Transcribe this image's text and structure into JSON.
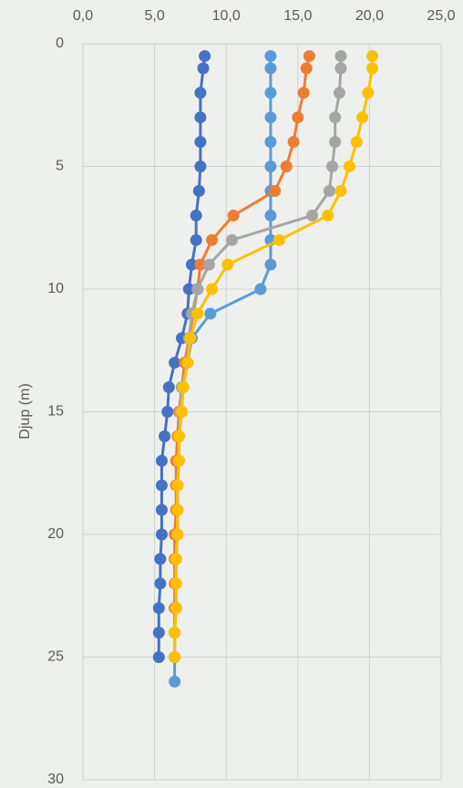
{
  "chart_data": {
    "type": "line",
    "ylabel": "Djup (m)",
    "grid": true,
    "y_inverted": true,
    "x_axis_position": "top",
    "xlim": [
      0,
      25
    ],
    "xticks": [
      {
        "value": 0,
        "label": "0,0"
      },
      {
        "value": 5,
        "label": "5,0"
      },
      {
        "value": 10,
        "label": "10,0"
      },
      {
        "value": 15,
        "label": "15,0"
      },
      {
        "value": 20,
        "label": "20,0"
      },
      {
        "value": 25,
        "label": "25,0"
      }
    ],
    "ylim": [
      0,
      30
    ],
    "yticks": [
      0,
      5,
      10,
      15,
      20,
      25,
      30
    ],
    "series": [
      {
        "color": "#4472c4",
        "y": [
          0.5,
          1,
          2,
          3,
          4,
          5,
          6,
          7,
          8,
          9,
          10,
          11,
          12,
          13,
          14,
          15,
          16,
          17,
          18,
          19,
          20,
          21,
          22,
          23,
          24,
          25
        ],
        "x": [
          8.5,
          8.4,
          8.2,
          8.2,
          8.2,
          8.2,
          8.1,
          7.9,
          7.9,
          7.6,
          7.4,
          7.3,
          6.9,
          6.4,
          6.0,
          5.9,
          5.7,
          5.5,
          5.5,
          5.5,
          5.5,
          5.4,
          5.4,
          5.3,
          5.3,
          5.3
        ]
      },
      {
        "color": "#5b9bd5",
        "y": [
          0.5,
          1,
          2,
          3,
          4,
          5,
          6,
          7,
          8,
          9,
          10,
          11,
          12,
          13,
          14,
          15,
          16,
          17,
          18,
          19,
          20,
          21,
          22,
          23,
          24,
          25,
          26
        ],
        "x": [
          13.1,
          13.1,
          13.1,
          13.1,
          13.1,
          13.1,
          13.1,
          13.1,
          13.1,
          13.1,
          12.4,
          8.9,
          7.6,
          7.3,
          6.9,
          6.9,
          6.7,
          6.7,
          6.6,
          6.6,
          6.6,
          6.5,
          6.5,
          6.5,
          6.4,
          6.4,
          6.4
        ]
      },
      {
        "color": "#ed7d31",
        "y": [
          0.5,
          1,
          2,
          3,
          4,
          5,
          6,
          7,
          8,
          9,
          10,
          11,
          12,
          13,
          14,
          15,
          16,
          17,
          18,
          19,
          20,
          21,
          22,
          23,
          24,
          25
        ],
        "x": [
          15.8,
          15.6,
          15.4,
          15.0,
          14.7,
          14.2,
          13.4,
          10.5,
          9.0,
          8.2,
          8.0,
          7.7,
          7.4,
          7.1,
          6.9,
          6.7,
          6.6,
          6.5,
          6.5,
          6.5,
          6.4,
          6.4,
          6.4,
          6.4,
          6.4,
          6.4
        ]
      },
      {
        "color": "#a5a5a5",
        "y": [
          0.5,
          1,
          2,
          3,
          4,
          5,
          6,
          7,
          8,
          9,
          10,
          11,
          12,
          13,
          14,
          15,
          16,
          17,
          18,
          19,
          20,
          21,
          22,
          23,
          24,
          25
        ],
        "x": [
          18.0,
          18.0,
          17.9,
          17.6,
          17.6,
          17.4,
          17.2,
          16.0,
          10.4,
          8.8,
          8.0,
          7.6,
          7.4,
          7.3,
          6.9,
          6.8,
          6.7,
          6.7,
          6.6,
          6.6,
          6.6,
          6.5,
          6.5,
          6.5,
          6.4,
          6.4
        ]
      },
      {
        "color": "#ffc000",
        "y": [
          0.5,
          1,
          2,
          3,
          4,
          5,
          6,
          7,
          8,
          9,
          10,
          11,
          12,
          13,
          14,
          15,
          16,
          17,
          18,
          19,
          20,
          21,
          22,
          23,
          24,
          25
        ],
        "x": [
          20.2,
          20.2,
          19.9,
          19.5,
          19.1,
          18.6,
          18.0,
          17.1,
          13.7,
          10.1,
          9.0,
          8.0,
          7.5,
          7.3,
          7.0,
          6.9,
          6.7,
          6.7,
          6.6,
          6.6,
          6.6,
          6.5,
          6.5,
          6.5,
          6.4,
          6.4
        ]
      }
    ]
  }
}
